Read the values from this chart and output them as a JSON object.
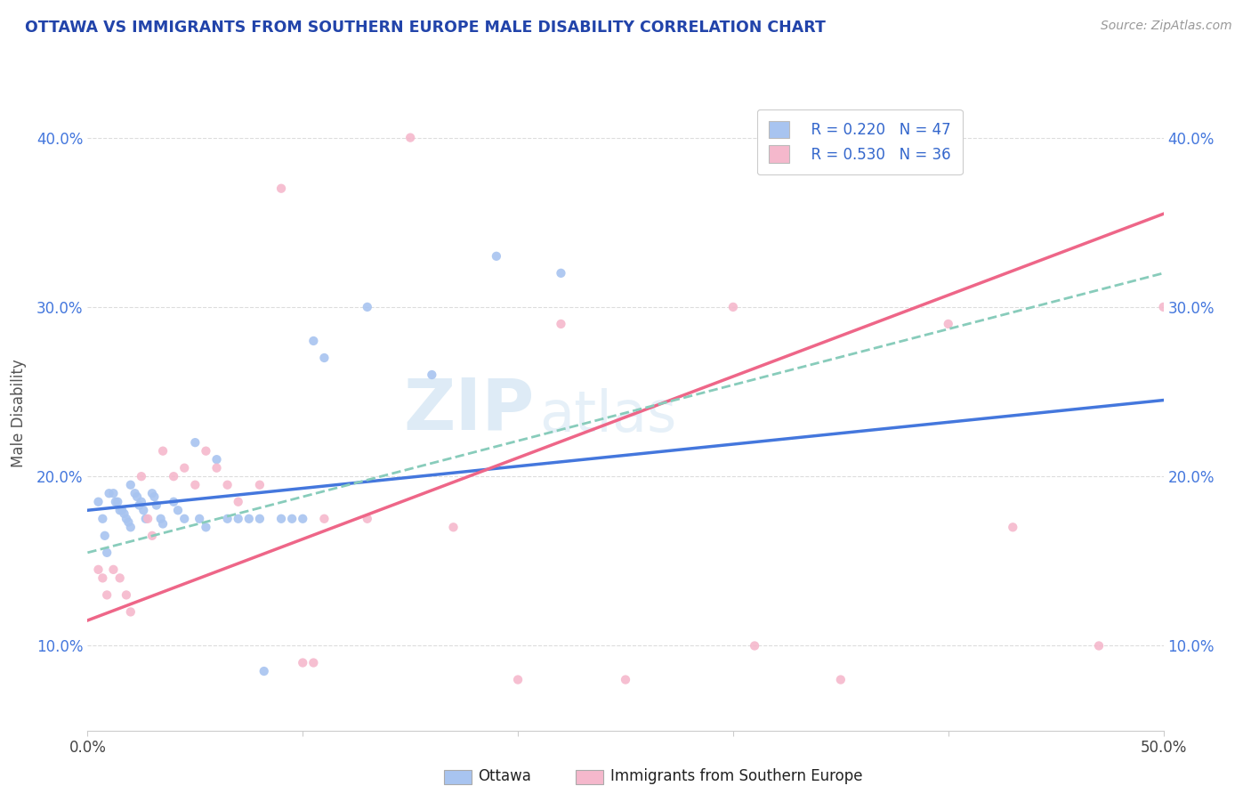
{
  "title": "OTTAWA VS IMMIGRANTS FROM SOUTHERN EUROPE MALE DISABILITY CORRELATION CHART",
  "source_text": "Source: ZipAtlas.com",
  "ylabel": "Male Disability",
  "xlim": [
    0.0,
    0.5
  ],
  "ylim": [
    0.05,
    0.425
  ],
  "yticks": [
    0.1,
    0.2,
    0.3,
    0.4
  ],
  "ytick_labels": [
    "10.0%",
    "20.0%",
    "30.0%",
    "40.0%"
  ],
  "legend_r1": "R = 0.220",
  "legend_n1": "N = 47",
  "legend_r2": "R = 0.530",
  "legend_n2": "N = 36",
  "blue_color": "#a8c4f0",
  "pink_color": "#f5b8cc",
  "blue_line_color": "#4477dd",
  "pink_line_color": "#ee6688",
  "dash_line_color": "#88ccbb",
  "watermark_zip": "ZIP",
  "watermark_atlas": "atlas",
  "ottawa_x": [
    0.005,
    0.007,
    0.008,
    0.009,
    0.01,
    0.012,
    0.013,
    0.014,
    0.015,
    0.016,
    0.017,
    0.018,
    0.019,
    0.02,
    0.02,
    0.022,
    0.023,
    0.024,
    0.025,
    0.026,
    0.027,
    0.03,
    0.031,
    0.032,
    0.034,
    0.035,
    0.04,
    0.042,
    0.045,
    0.05,
    0.052,
    0.055,
    0.06,
    0.065,
    0.07,
    0.075,
    0.08,
    0.082,
    0.09,
    0.095,
    0.1,
    0.105,
    0.11,
    0.13,
    0.16,
    0.19,
    0.22
  ],
  "ottawa_y": [
    0.185,
    0.175,
    0.165,
    0.155,
    0.19,
    0.19,
    0.185,
    0.185,
    0.18,
    0.18,
    0.178,
    0.175,
    0.173,
    0.195,
    0.17,
    0.19,
    0.188,
    0.183,
    0.185,
    0.18,
    0.175,
    0.19,
    0.188,
    0.183,
    0.175,
    0.172,
    0.185,
    0.18,
    0.175,
    0.22,
    0.175,
    0.17,
    0.21,
    0.175,
    0.175,
    0.175,
    0.175,
    0.085,
    0.175,
    0.175,
    0.175,
    0.28,
    0.27,
    0.3,
    0.26,
    0.33,
    0.32
  ],
  "immig_x": [
    0.005,
    0.007,
    0.009,
    0.012,
    0.015,
    0.018,
    0.02,
    0.025,
    0.028,
    0.03,
    0.035,
    0.04,
    0.045,
    0.05,
    0.055,
    0.06,
    0.065,
    0.07,
    0.08,
    0.09,
    0.1,
    0.105,
    0.11,
    0.13,
    0.15,
    0.17,
    0.2,
    0.22,
    0.25,
    0.3,
    0.31,
    0.35,
    0.4,
    0.43,
    0.47,
    0.5
  ],
  "immig_y": [
    0.145,
    0.14,
    0.13,
    0.145,
    0.14,
    0.13,
    0.12,
    0.2,
    0.175,
    0.165,
    0.215,
    0.2,
    0.205,
    0.195,
    0.215,
    0.205,
    0.195,
    0.185,
    0.195,
    0.37,
    0.09,
    0.09,
    0.175,
    0.175,
    0.4,
    0.17,
    0.08,
    0.29,
    0.08,
    0.3,
    0.1,
    0.08,
    0.29,
    0.17,
    0.1,
    0.3
  ],
  "blue_regression": [
    0.18,
    0.245
  ],
  "pink_regression": [
    0.115,
    0.355
  ],
  "dash_regression": [
    0.155,
    0.32
  ]
}
